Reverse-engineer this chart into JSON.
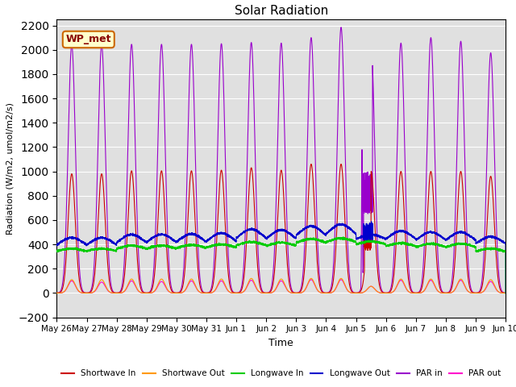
{
  "title": "Solar Radiation",
  "xlabel": "Time",
  "ylabel": "Radiation (W/m2, umol/m2/s)",
  "ylim": [
    -200,
    2250
  ],
  "yticks": [
    -200,
    0,
    200,
    400,
    600,
    800,
    1000,
    1200,
    1400,
    1600,
    1800,
    2000,
    2200
  ],
  "date_labels": [
    "May 26",
    "May 27",
    "May 28",
    "May 29",
    "May 30",
    "May 31",
    "Jun 1",
    "Jun 2",
    "Jun 3",
    "Jun 4",
    "Jun 5",
    "Jun 6",
    "Jun 7",
    "Jun 8",
    "Jun 9",
    "Jun 10"
  ],
  "n_days": 15,
  "shortwave_in_peak": [
    980,
    980,
    1005,
    1005,
    1005,
    1010,
    1030,
    1010,
    1060,
    1060,
    1000,
    1000,
    1000,
    1000,
    960
  ],
  "shortwave_out_peak": [
    110,
    110,
    115,
    115,
    115,
    115,
    120,
    115,
    120,
    120,
    55,
    115,
    115,
    115,
    110
  ],
  "longwave_in_base": [
    325,
    325,
    340,
    340,
    345,
    350,
    365,
    360,
    385,
    390,
    375,
    360,
    350,
    350,
    320
  ],
  "longwave_in_day_bump": [
    40,
    40,
    50,
    50,
    50,
    50,
    55,
    55,
    60,
    60,
    50,
    50,
    55,
    55,
    45
  ],
  "longwave_out_base": [
    355,
    355,
    370,
    372,
    375,
    378,
    400,
    398,
    420,
    430,
    420,
    400,
    390,
    390,
    368
  ],
  "longwave_out_day_bump": [
    100,
    100,
    110,
    110,
    110,
    115,
    125,
    120,
    130,
    135,
    60,
    110,
    110,
    110,
    95
  ],
  "par_in_peak": [
    2040,
    2040,
    2045,
    2045,
    2045,
    2050,
    2060,
    2055,
    2100,
    2185,
    2050,
    2055,
    2100,
    2070,
    1975
  ],
  "par_out_peak": [
    100,
    90,
    100,
    95,
    100,
    100,
    105,
    100,
    110,
    110,
    55,
    105,
    105,
    105,
    95
  ],
  "colors": {
    "shortwave_in": "#cc0000",
    "shortwave_out": "#ff9900",
    "longwave_in": "#00cc00",
    "longwave_out": "#0000cc",
    "par_in": "#9900cc",
    "par_out": "#ff00cc"
  },
  "bg_color": "#e0e0e0",
  "annotation_box": {
    "text": "WP_met",
    "facecolor": "#ffffcc",
    "edgecolor": "#cc6600",
    "textcolor": "#880000"
  }
}
